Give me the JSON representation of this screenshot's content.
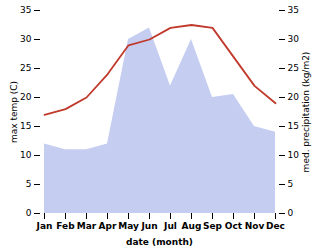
{
  "chart_data": {
    "type": "line",
    "xlabel": "date (month)",
    "ylabel": "max temp (C)",
    "y2label": "med. precipitation (kg/m2)",
    "categories": [
      "Jan",
      "Feb",
      "Mar",
      "Apr",
      "May",
      "Jun",
      "Jul",
      "Aug",
      "Sep",
      "Oct",
      "Nov",
      "Dec"
    ],
    "series": [
      {
        "type": "area",
        "axis": "y2",
        "color": "#c5cef0",
        "values": [
          12,
          11,
          11,
          12,
          30,
          32,
          22,
          30,
          20,
          20.5,
          15,
          14
        ]
      },
      {
        "type": "line",
        "color": "#c0392b",
        "values": [
          17,
          18,
          20,
          24,
          29,
          30,
          32,
          32.5,
          32,
          27,
          22,
          19
        ]
      }
    ],
    "ylim": [
      0,
      35
    ],
    "yticks": [
      0,
      5,
      10,
      15,
      20,
      25,
      30,
      35
    ],
    "y2lim": [
      0,
      35
    ],
    "y2ticks": [
      0,
      5,
      10,
      15,
      20,
      25,
      30,
      35
    ]
  }
}
